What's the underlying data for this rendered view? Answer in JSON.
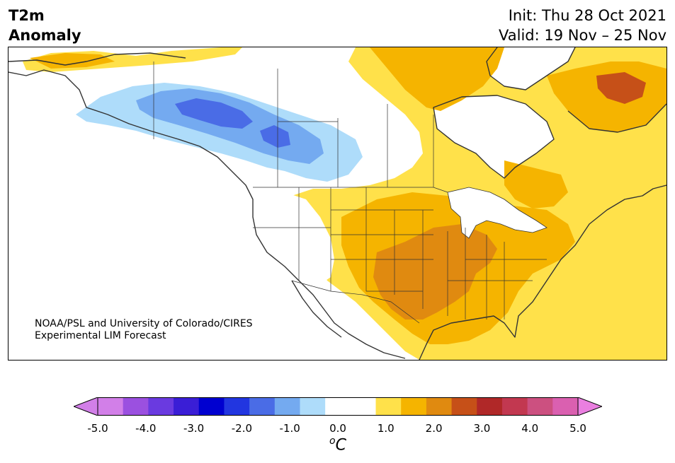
{
  "header": {
    "title_line1": "T2m",
    "title_line2": "Anomaly",
    "init": "Init: Thu 28 Oct 2021",
    "valid": "Valid: 19 Nov – 25 Nov"
  },
  "credit": {
    "line1": "NOAA/PSL and University of Colorado/CIRES",
    "line2": "Experimental LIM Forecast"
  },
  "colorbar": {
    "labels": [
      "-5.0",
      "-4.0",
      "-3.0",
      "-2.0",
      "-1.0",
      "0.0",
      "1.0",
      "2.0",
      "3.0",
      "4.0",
      "5.0"
    ],
    "unit_base": "C",
    "unit_sup": "o",
    "colors": [
      "#d27fe8",
      "#9b50e0",
      "#6a3ae0",
      "#3a1ed6",
      "#0000d0",
      "#2236e0",
      "#4a6ce6",
      "#74aaf0",
      "#aedcfa",
      "#ffffff",
      "#ffffff",
      "#ffe14a",
      "#f5b400",
      "#e08a10",
      "#c65018",
      "#b02828",
      "#c23850",
      "#cc5080",
      "#da60b0"
    ],
    "under_color": "#d27fe8",
    "over_color": "#ea7fe0"
  },
  "palette": {
    "land": "#ffffff",
    "water": "#ffffff",
    "coast": "#333333",
    "light_blue": "#aedcfa",
    "mid_blue": "#74aaf0",
    "dark_blue": "#4a6ce6",
    "yellow": "#ffe14a",
    "gold": "#f5b400",
    "orange": "#e08a10"
  }
}
